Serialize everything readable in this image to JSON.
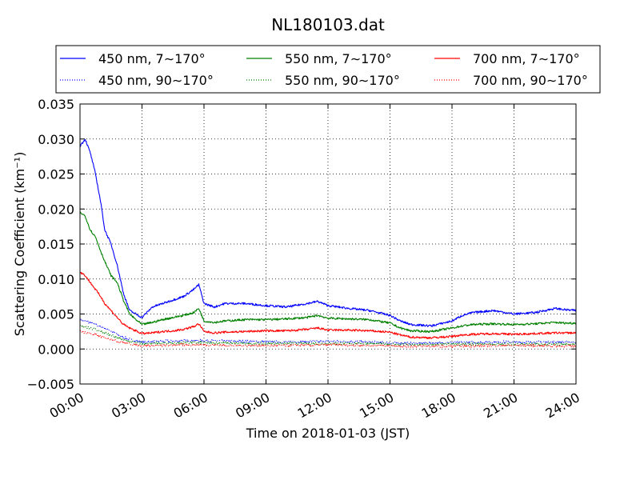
{
  "chart_data": {
    "type": "line",
    "title": "NL180103.dat",
    "xlabel": "Time on 2018-01-03 (JST)",
    "ylabel": "Scattering Coefficient (km⁻¹)",
    "xlim": [
      0,
      24
    ],
    "ylim": [
      -0.005,
      0.035
    ],
    "xticks": [
      "00:00",
      "03:00",
      "06:00",
      "09:00",
      "12:00",
      "15:00",
      "18:00",
      "21:00",
      "24:00"
    ],
    "yticks": [
      "−0.005",
      "0.000",
      "0.005",
      "0.010",
      "0.015",
      "0.020",
      "0.025",
      "0.030",
      "0.035"
    ],
    "grid": true,
    "legend_position": "top",
    "series": [
      {
        "name": "450 nm, 7∼170°",
        "color": "#0000ff",
        "style": "solid",
        "x": [
          0,
          0.25,
          0.5,
          0.75,
          1.0,
          1.2,
          1.5,
          1.8,
          2.1,
          2.4,
          2.7,
          3.0,
          3.5,
          4.0,
          4.5,
          5.0,
          5.5,
          5.75,
          6.0,
          6.5,
          7,
          8,
          9,
          10,
          11,
          11.5,
          12,
          13,
          14,
          15,
          15.5,
          16,
          17,
          18,
          18.5,
          19,
          20,
          21,
          22,
          23,
          23.5,
          24
        ],
        "y": [
          0.029,
          0.03,
          0.028,
          0.025,
          0.021,
          0.017,
          0.015,
          0.012,
          0.008,
          0.0055,
          0.005,
          0.0045,
          0.006,
          0.0065,
          0.007,
          0.0075,
          0.0085,
          0.0092,
          0.0065,
          0.006,
          0.0065,
          0.0065,
          0.0062,
          0.006,
          0.0065,
          0.0068,
          0.0062,
          0.0058,
          0.0055,
          0.0048,
          0.004,
          0.0035,
          0.0033,
          0.004,
          0.0048,
          0.0052,
          0.0055,
          0.005,
          0.0052,
          0.0058,
          0.0056,
          0.0055
        ]
      },
      {
        "name": "550 nm, 7∼170°",
        "color": "#008000",
        "style": "solid",
        "x": [
          0,
          0.25,
          0.5,
          0.75,
          1.0,
          1.2,
          1.5,
          1.8,
          2.1,
          2.4,
          2.7,
          3.0,
          3.5,
          4.0,
          4.5,
          5.0,
          5.5,
          5.75,
          6.0,
          6.5,
          7,
          8,
          9,
          10,
          11,
          11.5,
          12,
          13,
          14,
          15,
          15.5,
          16,
          17,
          18,
          18.5,
          19,
          20,
          21,
          22,
          23,
          23.5,
          24
        ],
        "y": [
          0.0195,
          0.019,
          0.017,
          0.016,
          0.014,
          0.0125,
          0.0105,
          0.0095,
          0.007,
          0.005,
          0.0042,
          0.0035,
          0.0038,
          0.0042,
          0.0045,
          0.0048,
          0.0052,
          0.0058,
          0.004,
          0.0038,
          0.004,
          0.0042,
          0.0042,
          0.0043,
          0.0045,
          0.0048,
          0.0044,
          0.0043,
          0.0042,
          0.0037,
          0.003,
          0.0026,
          0.0025,
          0.003,
          0.0033,
          0.0035,
          0.0036,
          0.0035,
          0.0036,
          0.0038,
          0.0037,
          0.0037
        ]
      },
      {
        "name": "700 nm, 7∼170°",
        "color": "#ff0000",
        "style": "solid",
        "x": [
          0,
          0.25,
          0.5,
          0.75,
          1.0,
          1.2,
          1.5,
          1.8,
          2.1,
          2.4,
          2.7,
          3.0,
          3.5,
          4.0,
          4.5,
          5.0,
          5.5,
          5.75,
          6.0,
          6.5,
          7,
          8,
          9,
          10,
          11,
          11.5,
          12,
          13,
          14,
          15,
          15.5,
          16,
          17,
          18,
          18.5,
          19,
          20,
          21,
          22,
          23,
          23.5,
          24
        ],
        "y": [
          0.011,
          0.0105,
          0.0095,
          0.0085,
          0.0075,
          0.0065,
          0.0055,
          0.0045,
          0.0035,
          0.003,
          0.0026,
          0.0022,
          0.0023,
          0.0025,
          0.0026,
          0.0028,
          0.0032,
          0.0036,
          0.0025,
          0.0023,
          0.0024,
          0.0025,
          0.0026,
          0.0026,
          0.0028,
          0.003,
          0.0027,
          0.0027,
          0.0026,
          0.0024,
          0.002,
          0.0017,
          0.0016,
          0.0018,
          0.002,
          0.0021,
          0.0022,
          0.0021,
          0.0022,
          0.0023,
          0.0023,
          0.0023
        ]
      },
      {
        "name": "450 nm, 90∼170°",
        "color": "#0000ff",
        "style": "dotted",
        "x": [
          0,
          0.5,
          1.0,
          1.5,
          2.0,
          2.5,
          3.0,
          4,
          5,
          6,
          8,
          10,
          12,
          14,
          15,
          16,
          18,
          20,
          22,
          24
        ],
        "y": [
          0.0042,
          0.0038,
          0.0032,
          0.0026,
          0.0018,
          0.0013,
          0.001,
          0.0011,
          0.0012,
          0.0012,
          0.0011,
          0.001,
          0.0011,
          0.001,
          0.0009,
          0.0008,
          0.0009,
          0.001,
          0.001,
          0.001
        ]
      },
      {
        "name": "550 nm, 90∼170°",
        "color": "#008000",
        "style": "dotted",
        "x": [
          0,
          0.5,
          1.0,
          1.5,
          2.0,
          2.5,
          3.0,
          4,
          5,
          6,
          8,
          10,
          12,
          14,
          15,
          16,
          18,
          20,
          22,
          24
        ],
        "y": [
          0.0033,
          0.003,
          0.0025,
          0.002,
          0.0014,
          0.001,
          0.0008,
          0.0008,
          0.0009,
          0.0009,
          0.0008,
          0.0008,
          0.0008,
          0.0008,
          0.0007,
          0.0006,
          0.0007,
          0.0007,
          0.0007,
          0.0007
        ]
      },
      {
        "name": "700 nm, 90∼170°",
        "color": "#ff0000",
        "style": "dotted",
        "x": [
          0,
          0.5,
          1.0,
          1.5,
          2.0,
          2.5,
          3.0,
          4,
          5,
          6,
          8,
          10,
          12,
          14,
          15,
          16,
          18,
          20,
          22,
          24
        ],
        "y": [
          0.0025,
          0.0022,
          0.0018,
          0.0014,
          0.001,
          0.0007,
          0.0005,
          0.0005,
          0.0006,
          0.0006,
          0.0005,
          0.0005,
          0.0006,
          0.0005,
          0.0005,
          0.0004,
          0.0004,
          0.0005,
          0.0005,
          0.0004
        ]
      }
    ]
  }
}
